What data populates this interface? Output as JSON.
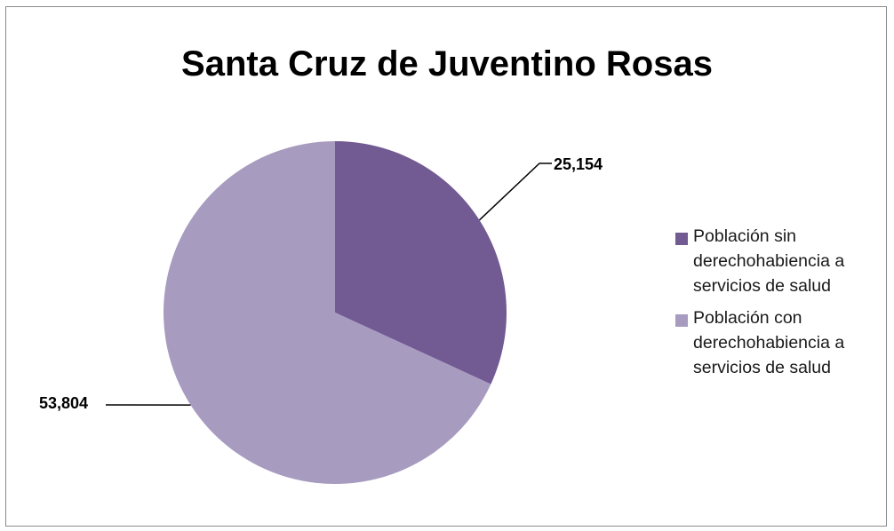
{
  "chart_data": {
    "type": "pie",
    "title": "Santa Cruz de Juventino Rosas",
    "slices": [
      {
        "label": "Población sin derechohabiencia a servicios de salud",
        "value": 25154,
        "display": "25,154",
        "color": "#725a93"
      },
      {
        "label": "Población con derechohabiencia a servicios de salud",
        "value": 53804,
        "display": "53,804",
        "color": "#a89bc0"
      }
    ],
    "legend_position": "right"
  }
}
